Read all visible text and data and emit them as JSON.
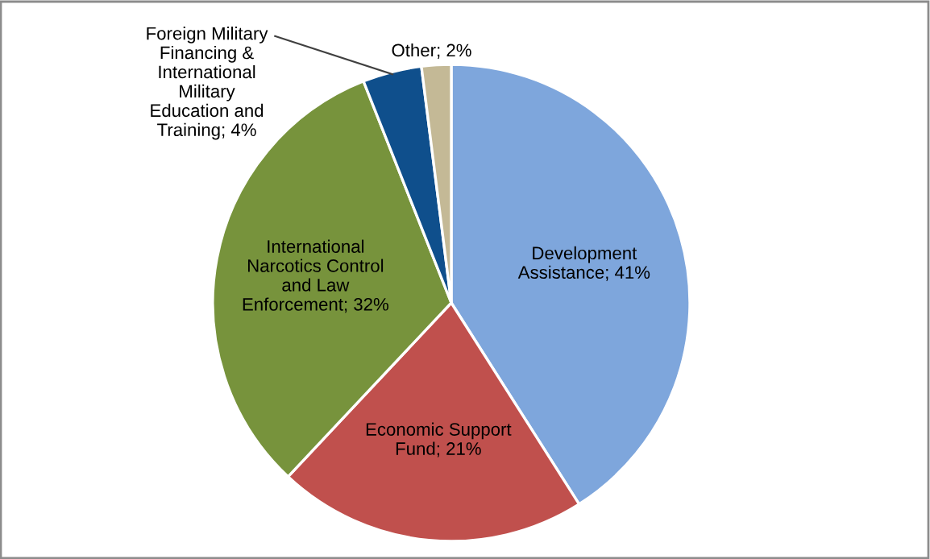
{
  "chart_data": {
    "type": "pie",
    "categories": [
      "Development\nAssistance",
      "Economic Support\nFund",
      "International\nNarcotics Control\nand Law\nEnforcement",
      "Foreign Military\nFinancing &\nInternational\nMilitary\nEducation and\nTraining",
      "Other"
    ],
    "values": [
      41,
      21,
      32,
      4,
      2
    ],
    "colors": [
      "#7ea6dc",
      "#c0504d",
      "#77933c",
      "#0f4f8c",
      "#c4b996"
    ],
    "value_labels": [
      "41%",
      "21%",
      "32%",
      "4%",
      "2%"
    ]
  }
}
